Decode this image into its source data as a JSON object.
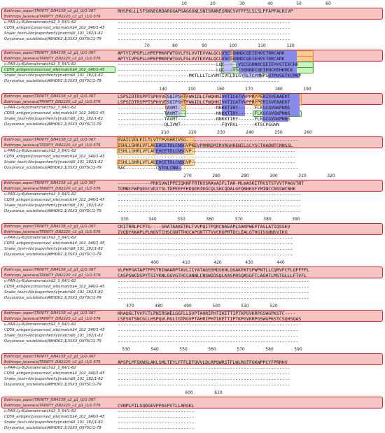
{
  "labels": {
    "seq1": "Bothrops_asper|TRINITY_DN4158_c2_g1_i2/1-367",
    "seq2": "Bothrops_jararaca|TRINITY_DN2220_c2_g1_i1/1-576",
    "dom1": "u-PAR-Ly-6|domainmatch$2_3_64/1-62",
    "dom2": "CD59_antigen|conserved_site|match$4_102_146/1-45",
    "dom3": "Snake_toxin-like|superfamily|match$6_101_182/1-82",
    "dom4": "Oxyuranus_scutellatus|A8HDK2.1|3SX3_OXYSC/1-79"
  },
  "blocks": [
    {
      "ticks": [
        "10",
        "20",
        "30",
        "40",
        "50",
        "60"
      ],
      "seq1": "RHSPKLLLSFSKNEGRDARGGAPGAGGGWLSNISRAREGRNCSVFFFSLSLSLPFAPFALRIVP",
      "seq2": "",
      "dom1": "---------------------------------------------------------------",
      "dom2": "---------------------------------------------------------------",
      "dom3": "---------------------------------------------------------------",
      "dom4": "---------------------------------------------------------------"
    },
    {
      "ticks": [
        "70",
        "80",
        "90",
        "100",
        "110",
        "120"
      ],
      "seq1": "APTYIVPGPLLHPEPMKRFWTGVLFSLVVTEVVALQCLVSCSGNNDCQEIEHVSTRRCARK",
      "seq2": "APTYIVPGPLLHPEPMKRFWTGVLFSLVVTEVVALQCLVSCSGNNDCQEIEHVSTRRCARK",
      "dom1": "------------------------------------LQC-----VSCSGNNDCQEIEHVSTEKCHK",
      "dom2": "------------------------------------LQC---VSCSGNNDCQEIEHCKEHKMCK",
      "dom3": "--------------------------MKTLLLTLVVMTIVCLDLGYTLTCYMNPSGTMVSGTKCMKP",
      "dom4": "-----------------------------------------------------------"
    },
    {
      "ticks": [
        "140",
        "150",
        "160",
        "170",
        "180",
        "190"
      ],
      "seq1": "LSPSIDTRSPPTSPHVVESQIPSHTFWAIDLCFWQHNIVKTICATVVPPRYPERISVEAAEKT",
      "seq2": "LSPSIDTRSPPTSPHVVESQIPSHTFWAIDLCFWQHNIVKTICATVVPPRYPERISVEAAEKT",
      "dom1": "-----------------TAVMT--------------NNKKTIRY------FLKGCGVGKPNNS",
      "dom2": "-----------------TAVMT--------------NNKKTIRY------FLKGCGVGKPNNS",
      "dom3": "-----------------TAVMT--------------NNKKTIRY------FLKGCGVGKPNNS",
      "dom4": "-----------------QLIVWT---------------FQYRVL------KTSCPGGNN"
    },
    {
      "ticks": [
        "210",
        "220",
        "230",
        "240",
        "250",
        "260"
      ],
      "seq1": "SVAILVOLEILTLVTTPVSHRIVSG-----------------------------------------",
      "seq2": "ISHLLGHRLVFLAEEHCETDLCNSGVPKEVPRMRDMIRVRGHRENILSCYSCTAADNTCNNSSL",
      "dom1": "ISHLLGHRLVFLAEEHCETDLCNSGVP--------------------------------------",
      "dom2": "-----------------------------------------------------------------",
      "dom3": "ISHLLGHRLVFLAEEHCETDLCNSGVP--------------------------------------",
      "dom4": "RAC-----------CSTDLCNN--------------------------------------------"
    },
    {
      "ticks": [
        "270",
        "280",
        "290",
        "300",
        "310",
        "320"
      ],
      "seq1": "------------PRKSVWIPPEIQKNFFRTNVSRAVASFLTAR-MLWASKITRVSTSTVVTPAGVTNT",
      "seq2": "TOMNCFWPQEECVDITSLTDPEEFFKDQERIKGCQLSHCQDALGFQNHKSFYMINCCNSSWCNHK",
      "dom1": "-------------------------------------------------------------------",
      "dom2": "-------------------------------------------------------------------",
      "dom3": "-------------------------------------------------------------------",
      "dom4": "-------------------------------------------------------------------"
    },
    {
      "ticks": [
        "330",
        "340",
        "350",
        "360",
        "370",
        "380",
        "390"
      ],
      "seq1": "CKITRRLPCPTG----SRATAAKETRLTVVPQITPQRCNAEAPLSAKPWEPTASLATIQSSKV",
      "seq2": "IVQDYKKAPLPLNGVTCHSCGNTTHGCAPGNTTTVVCRGPMTDCLEALGTHGISGNNSVIKG",
      "dom1": "----------------------------------------------------------------",
      "dom2": "----------------------------------------------------------------",
      "dom3": "----------------------------------------------------------------",
      "dom4": "----------------------------------------------------------------"
    },
    {
      "ticks": [
        "400",
        "410",
        "420",
        "430",
        "440"
      ],
      "seq1": "VLPHPGATAPTPPSTRIWAARPTAVLIIYATAGSSMDSKHLQGAKPATSPWPNTLLCQRVFCFLQFFFFL",
      "seq2": "CASPSWCDSPYTSIYKNLGGVGTHCCANNLCNSWIDSQLKASPRSQASGFTLAGHTLMSTGLLLFTVFL",
      "dom1": "----------------------------------------------------------------------",
      "dom2": "----------------------------------------------------------------------",
      "dom3": "----------------------------------------------------------------------",
      "dom4": "----------------------------------------------------------------------"
    },
    {
      "ticks": [
        "470",
        "480",
        "490",
        "500",
        "510",
        "520"
      ],
      "seq1": "KKAQGLTVVFCTLPNIRSWELGGFLLSVPTAHRIPHTIKETTIPTKPGVKRPGSWGPKSTC----",
      "seq2": "LSESGTSNCGLLHSPQVLRGLIGTRGVPTAHRIPHTIKETTIPTKPGVKRPGSWGPKSTCSQHSQAS",
      "dom1": "------------------------------------------------------------------",
      "dom2": "------------------------------------------------------------------",
      "dom3": "------------------------------------------------------------------",
      "dom4": "------------------------------------------------------------------"
    },
    {
      "ticks": [
        "530",
        "540",
        "550",
        "560",
        "570",
        "580",
        "590"
      ],
      "seq1": "",
      "seq2": "APSPLPFSKWSLAKLSMLTEYLFFFLDTQVVLDLRPQWRSTFLWLRGTFGKWPPCYFPRRHV",
      "dom1": "---------------------------------------------------------------",
      "dom2": "---------------------------------------------------------------",
      "dom3": "---------------------------------------------------------------",
      "dom4": "---------------------------------------------------------------"
    },
    {
      "ticks": [
        "600",
        "610"
      ],
      "seq1": "",
      "seq2": "CVNPLPILSQDGEVPPASPVTLLARSKL",
      "dom1": "----------------------------",
      "dom2": "----------------------------",
      "dom3": "----------------------------",
      "dom4": "----------------------------"
    }
  ]
}
